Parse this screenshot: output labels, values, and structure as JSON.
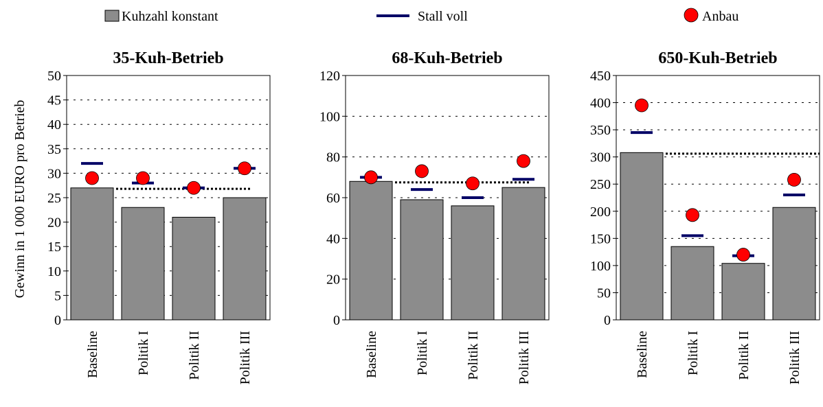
{
  "legend": {
    "bar_label": "Kuhzahl konstant",
    "line_label": "Stall voll",
    "dot_label": "Anbau"
  },
  "colors": {
    "bar": "#8c8c8c",
    "line": "#000066",
    "dot": "#ff0000",
    "reference": "#000000"
  },
  "ylabel": "Gewinn in 1 000 EURO pro Betrieb",
  "chart_data": [
    {
      "type": "bar",
      "title": "35-Kuh-Betrieb",
      "categories": [
        "Baseline",
        "Politik I",
        "Politik II",
        "Politik III"
      ],
      "ylim": [
        0,
        50
      ],
      "yticks": [
        0,
        5,
        10,
        15,
        20,
        25,
        30,
        35,
        40,
        45,
        50
      ],
      "grid": true,
      "reference_line": 26.8,
      "series": [
        {
          "name": "Kuhzahl konstant",
          "values": [
            27,
            23,
            21,
            25
          ]
        },
        {
          "name": "Stall voll",
          "values": [
            32,
            28,
            27,
            31
          ]
        },
        {
          "name": "Anbau",
          "values": [
            29,
            29,
            27,
            31
          ]
        }
      ]
    },
    {
      "type": "bar",
      "title": "68-Kuh-Betrieb",
      "categories": [
        "Baseline",
        "Politik I",
        "Politik II",
        "Politik III"
      ],
      "ylim": [
        0,
        120
      ],
      "yticks": [
        0,
        20,
        40,
        60,
        80,
        100,
        120
      ],
      "grid": true,
      "reference_line": 67.5,
      "series": [
        {
          "name": "Kuhzahl konstant",
          "values": [
            68,
            59,
            56,
            65
          ]
        },
        {
          "name": "Stall voll",
          "values": [
            70,
            64,
            60,
            69
          ]
        },
        {
          "name": "Anbau",
          "values": [
            70,
            73,
            67,
            78
          ]
        }
      ]
    },
    {
      "type": "bar",
      "title": "650-Kuh-Betrieb",
      "categories": [
        "Baseline",
        "Politik I",
        "Politik II",
        "Politik III"
      ],
      "ylim": [
        0,
        450
      ],
      "yticks": [
        0,
        50,
        100,
        150,
        200,
        250,
        300,
        350,
        400,
        450
      ],
      "grid": true,
      "reference_line": 306,
      "series": [
        {
          "name": "Kuhzahl konstant",
          "values": [
            308,
            135,
            104,
            207
          ]
        },
        {
          "name": "Stall voll",
          "values": [
            345,
            155,
            118,
            230
          ]
        },
        {
          "name": "Anbau",
          "values": [
            395,
            193,
            120,
            258
          ]
        }
      ]
    }
  ]
}
